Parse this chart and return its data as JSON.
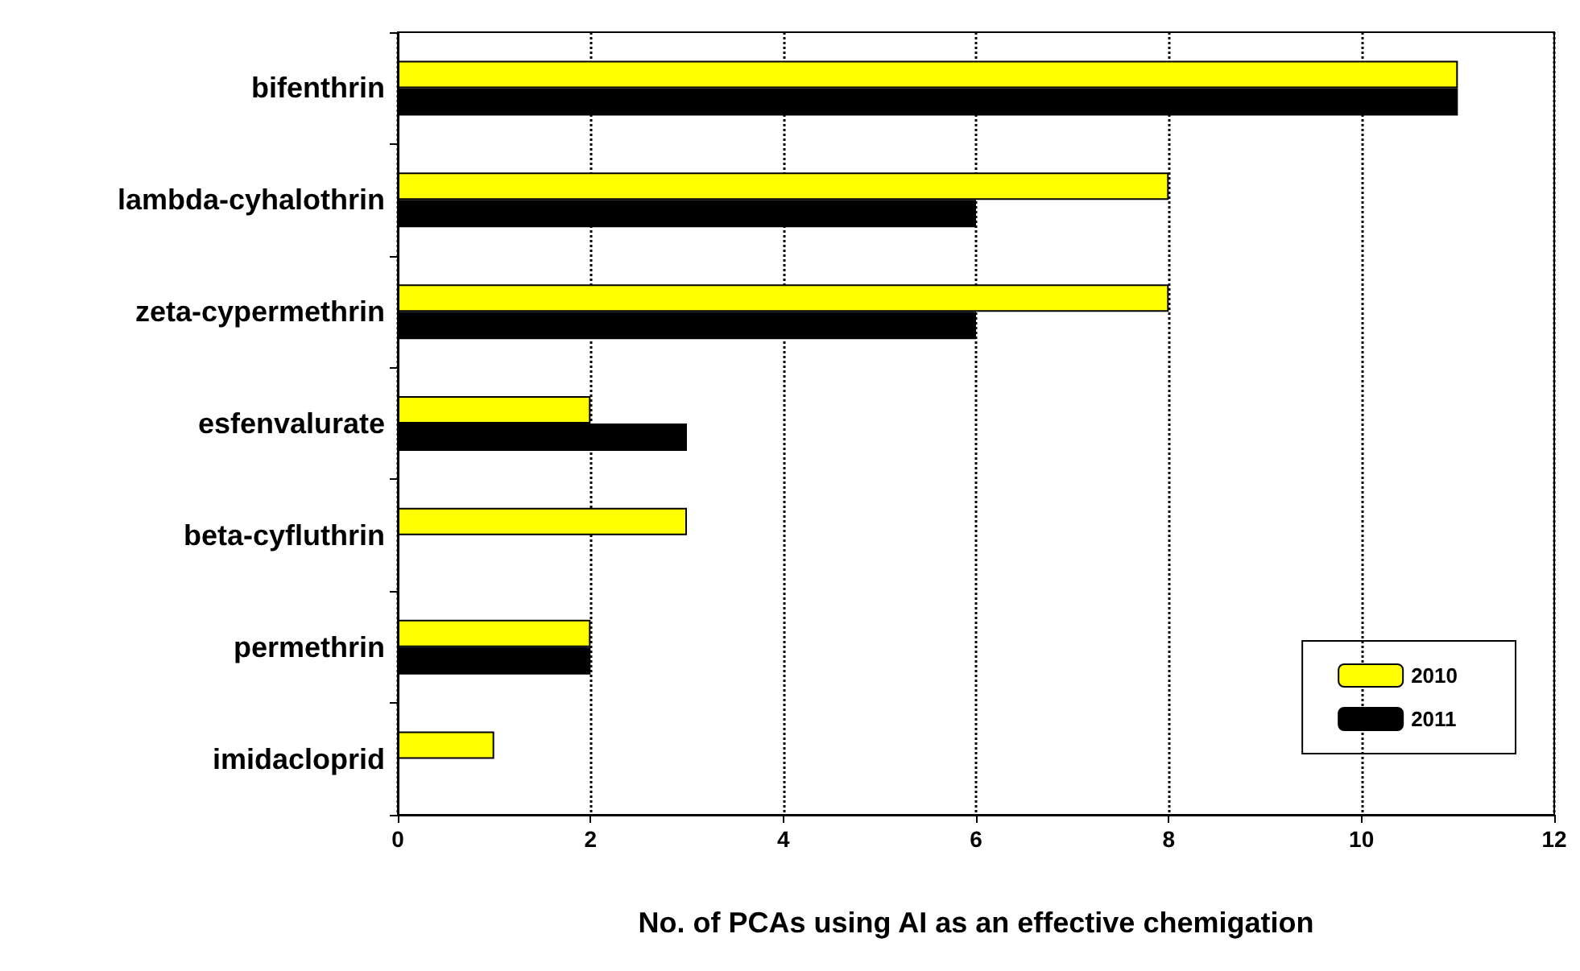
{
  "chart_data": {
    "type": "bar",
    "orientation": "horizontal",
    "xlabel": "No. of PCAs using AI as an effective chemigation",
    "categories": [
      "bifenthrin",
      "lambda-cyhalothrin",
      "zeta-cypermethrin",
      "esfenvalurate",
      "beta-cyfluthrin",
      "permethrin",
      "imidacloprid"
    ],
    "series": [
      {
        "name": "2010",
        "color": "#ffff00",
        "values": [
          11,
          8,
          8,
          2,
          3,
          2,
          1
        ]
      },
      {
        "name": "2011",
        "color": "#000000",
        "values": [
          11,
          6,
          6,
          3,
          null,
          2,
          null
        ]
      }
    ],
    "xlim": [
      0,
      12
    ],
    "xticks": [
      0,
      2,
      4,
      6,
      8,
      10,
      12
    ],
    "grid": "x",
    "legend": "bottom right"
  }
}
